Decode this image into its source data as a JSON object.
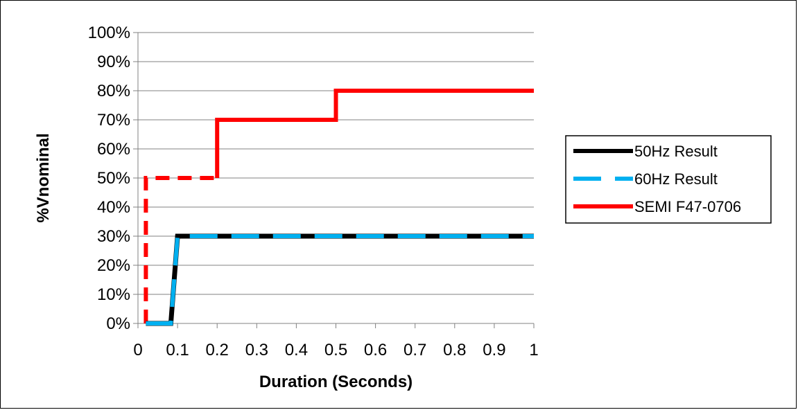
{
  "chart_data": {
    "type": "line",
    "title": "",
    "xlabel": "Duration (Seconds)",
    "ylabel": "%Vnominal",
    "xlim": [
      0,
      1
    ],
    "ylim": [
      0,
      1
    ],
    "x_ticks": [
      "0",
      "0.1",
      "0.2",
      "0.3",
      "0.4",
      "0.5",
      "0.6",
      "0.7",
      "0.8",
      "0.9",
      "1"
    ],
    "y_ticks": [
      "0%",
      "10%",
      "20%",
      "30%",
      "40%",
      "50%",
      "60%",
      "70%",
      "80%",
      "90%",
      "100%"
    ],
    "grid": "horizontal",
    "legend_position": "right",
    "series": [
      {
        "name": "SEMI F47-0706",
        "color": "#ff0000",
        "style": "solid",
        "segments": [
          {
            "style": "dashed",
            "points": [
              [
                0.02,
                0
              ],
              [
                0.02,
                0.5
              ],
              [
                0.2,
                0.5
              ]
            ]
          },
          {
            "style": "solid",
            "points": [
              [
                0.2,
                0.5
              ],
              [
                0.2,
                0.7
              ],
              [
                0.5,
                0.7
              ],
              [
                0.5,
                0.8
              ],
              [
                1.0,
                0.8
              ]
            ]
          }
        ]
      },
      {
        "name": "50Hz Result",
        "color": "#000000",
        "style": "solid",
        "points": [
          [
            0.02,
            0
          ],
          [
            0.083,
            0
          ],
          [
            0.1,
            0.3
          ],
          [
            1.0,
            0.3
          ]
        ]
      },
      {
        "name": "60Hz Result",
        "color": "#00b0f0",
        "style": "dashed",
        "points": [
          [
            0.02,
            0
          ],
          [
            0.083,
            0
          ],
          [
            0.1,
            0.3
          ],
          [
            1.0,
            0.3
          ]
        ]
      }
    ],
    "legend": [
      {
        "name": "50Hz Result",
        "color": "#000000",
        "style": "solid"
      },
      {
        "name": "60Hz Result",
        "color": "#00b0f0",
        "style": "dashed"
      },
      {
        "name": "SEMI F47-0706",
        "color": "#ff0000",
        "style": "solid"
      }
    ]
  }
}
